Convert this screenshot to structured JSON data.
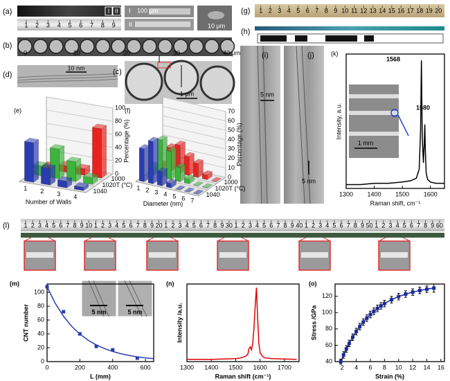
{
  "panels": {
    "a": {
      "label": "(a)",
      "texts": [
        "I",
        "II",
        "100 μm",
        "II",
        "10 μm"
      ],
      "ruler": [
        "1",
        "2",
        "3",
        "4",
        "5",
        "6",
        "7",
        "8",
        "9"
      ]
    },
    "b": {
      "label": "(b)",
      "scale": [
        "0",
        "10",
        "20",
        "30",
        "40 μm"
      ]
    },
    "c": {
      "label": "(c)",
      "scale_bar": "1 μm"
    },
    "d": {
      "label": "(d)",
      "scale_bar": "10 nm"
    },
    "g": {
      "label": "(g)",
      "ruler": [
        "1",
        "2",
        "3",
        "4",
        "5",
        "6",
        "7",
        "8",
        "9",
        "10",
        "11",
        "12",
        "13",
        "14",
        "15",
        "16",
        "17",
        "18",
        "19",
        "20"
      ]
    },
    "h": {
      "label": "(h)"
    },
    "i": {
      "label": "(i)",
      "scale_bar": "5 nm"
    },
    "j": {
      "label": "(j)",
      "scale_bar": "5 nm"
    },
    "l": {
      "label": "(l)",
      "ruler": [
        "1",
        "2",
        "3",
        "4",
        "5",
        "6",
        "7",
        "8",
        "9",
        "10",
        "1",
        "2",
        "3",
        "4",
        "5",
        "6",
        "7",
        "8",
        "9",
        "20",
        "1",
        "2",
        "3",
        "4",
        "5",
        "6",
        "7",
        "8",
        "9",
        "30",
        "1",
        "2",
        "3",
        "4",
        "5",
        "6",
        "7",
        "8",
        "9",
        "40",
        "1",
        "2",
        "3",
        "4",
        "5",
        "6",
        "7",
        "8",
        "9",
        "50",
        "1",
        "2",
        "3",
        "4",
        "5",
        "6",
        "7",
        "8",
        "9",
        "60"
      ]
    }
  },
  "chart_data": [
    {
      "type": "bar3d",
      "label": "(e)",
      "x_label": "Number of Walls",
      "y_label": "Percentage (%)",
      "z_label": "T (°C)",
      "categories": [
        "1",
        "2",
        "3",
        "4"
      ],
      "series": [
        {
          "name": "1000",
          "color": "#e8231f",
          "values": [
            5,
            10,
            10,
            75
          ]
        },
        {
          "name": "1020",
          "color": "#3cb43c",
          "values": [
            15,
            45,
            30,
            10
          ]
        },
        {
          "name": "1040",
          "color": "#2a3cb0",
          "values": [
            60,
            25,
            10,
            5
          ]
        }
      ],
      "ylim": [
        0,
        100
      ],
      "yticks": [
        0,
        20,
        40,
        60,
        80,
        100
      ]
    },
    {
      "type": "bar3d",
      "label": "(f)",
      "x_label": "Diameter (nm)",
      "y_label": "Percentage (%)",
      "z_label": "T (°C)",
      "categories": [
        "1",
        "2",
        "3",
        "4",
        "5",
        "6",
        "7"
      ],
      "series": [
        {
          "name": "1000",
          "color": "#e8231f",
          "values": [
            5,
            25,
            30,
            20,
            15,
            5,
            0
          ]
        },
        {
          "name": "1020",
          "color": "#3cb43c",
          "values": [
            10,
            40,
            30,
            15,
            5,
            0,
            0
          ]
        },
        {
          "name": "1040",
          "color": "#2a3cb0",
          "values": [
            35,
            45,
            15,
            5,
            0,
            0,
            0
          ]
        }
      ],
      "ylim": [
        0,
        70
      ],
      "yticks": [
        0,
        10,
        20,
        30,
        40,
        50,
        60,
        70
      ]
    },
    {
      "type": "line",
      "label": "(k)",
      "x_label": "Raman shift, cm⁻¹",
      "y_label": "Intensity, a.u.",
      "annotations": [
        "1568",
        "1580"
      ],
      "inset_scale_bar": "1 mm",
      "xlim": [
        1300,
        1650
      ],
      "xticks": [
        1300,
        1400,
        1500,
        1600
      ],
      "ylim": [
        0,
        1.05
      ],
      "series": [
        {
          "style": "line",
          "color": "#000000",
          "x": [
            1300,
            1350,
            1400,
            1450,
            1500,
            1530,
            1550,
            1560,
            1565,
            1568,
            1571,
            1575,
            1578,
            1580,
            1582,
            1585,
            1590,
            1600,
            1620,
            1650
          ],
          "values": [
            0.03,
            0.03,
            0.04,
            0.04,
            0.05,
            0.06,
            0.08,
            0.15,
            0.45,
            1.0,
            0.4,
            0.2,
            0.35,
            0.5,
            0.3,
            0.12,
            0.07,
            0.05,
            0.04,
            0.04
          ]
        }
      ]
    },
    {
      "type": "scatter",
      "label": "(m)",
      "x_label": "L (mm)",
      "y_label": "CNT number",
      "inset_scale_bars": [
        "5 nm",
        "5 nm"
      ],
      "xlim": [
        0,
        650
      ],
      "xticks": [
        0,
        200,
        400,
        600
      ],
      "ylim": [
        0,
        112
      ],
      "yticks": [
        0,
        20,
        40,
        60,
        80,
        100
      ],
      "series": [
        {
          "style": "markers",
          "color": "#2a3cb0",
          "x": [
            0,
            100,
            200,
            300,
            400,
            550
          ],
          "values": [
            108,
            72,
            40,
            22,
            17,
            5
          ]
        },
        {
          "style": "line",
          "color": "#2a3cb0",
          "x": [
            0,
            50,
            100,
            150,
            200,
            250,
            300,
            350,
            400,
            450,
            500,
            550,
            600,
            650
          ],
          "values": [
            108,
            84.1,
            65.5,
            51.0,
            39.7,
            30.9,
            24.1,
            18.8,
            14.6,
            11.4,
            8.9,
            6.9,
            5.4,
            4.2
          ]
        }
      ]
    },
    {
      "type": "line",
      "label": "(n)",
      "x_label": "Raman shift (cm⁻¹)",
      "y_label": "Intensity /a.u.",
      "xlim": [
        1300,
        1760
      ],
      "xticks": [
        1300,
        1400,
        1500,
        1600,
        1700
      ],
      "ylim": [
        0,
        1.05
      ],
      "series": [
        {
          "style": "line",
          "color": "#e00000",
          "x": [
            1300,
            1350,
            1400,
            1450,
            1500,
            1520,
            1540,
            1550,
            1555,
            1560,
            1565,
            1570,
            1575,
            1580,
            1585,
            1590,
            1595,
            1600,
            1610,
            1620,
            1650,
            1700,
            1750
          ],
          "values": [
            0.03,
            0.03,
            0.03,
            0.035,
            0.04,
            0.05,
            0.07,
            0.1,
            0.18,
            0.2,
            0.16,
            0.25,
            0.45,
            0.75,
            1.0,
            0.6,
            0.25,
            0.12,
            0.07,
            0.05,
            0.04,
            0.035,
            0.03
          ]
        }
      ]
    },
    {
      "type": "errorbar",
      "label": "(o)",
      "x_label": "Strain (%)",
      "y_label": "Stress /GPa",
      "xlim": [
        1,
        16.5
      ],
      "xticks": [
        2,
        4,
        6,
        8,
        10,
        12,
        14,
        16
      ],
      "ylim": [
        40,
        135
      ],
      "yticks": [
        40,
        60,
        80,
        100,
        120
      ],
      "series": [
        {
          "style": "both",
          "color": "#1a2a9a",
          "x": [
            1.8,
            2.2,
            2.6,
            3,
            3.5,
            4,
            4.5,
            5,
            5.5,
            6,
            6.5,
            7,
            7.5,
            8,
            9,
            10,
            11,
            12,
            13,
            14,
            15
          ],
          "values": [
            40,
            48.1,
            55.5,
            62.2,
            69.9,
            76.8,
            82.9,
            88.4,
            93.2,
            97.7,
            101.6,
            105.1,
            108.2,
            111.1,
            115.8,
            119.6,
            122.7,
            125.1,
            127.1,
            128.7,
            130.0
          ],
          "errors": [
            3,
            4,
            4,
            4,
            4,
            4,
            4,
            4,
            4,
            4,
            4,
            4,
            4,
            4,
            4,
            4,
            4,
            4,
            4,
            4,
            5
          ]
        }
      ]
    }
  ]
}
